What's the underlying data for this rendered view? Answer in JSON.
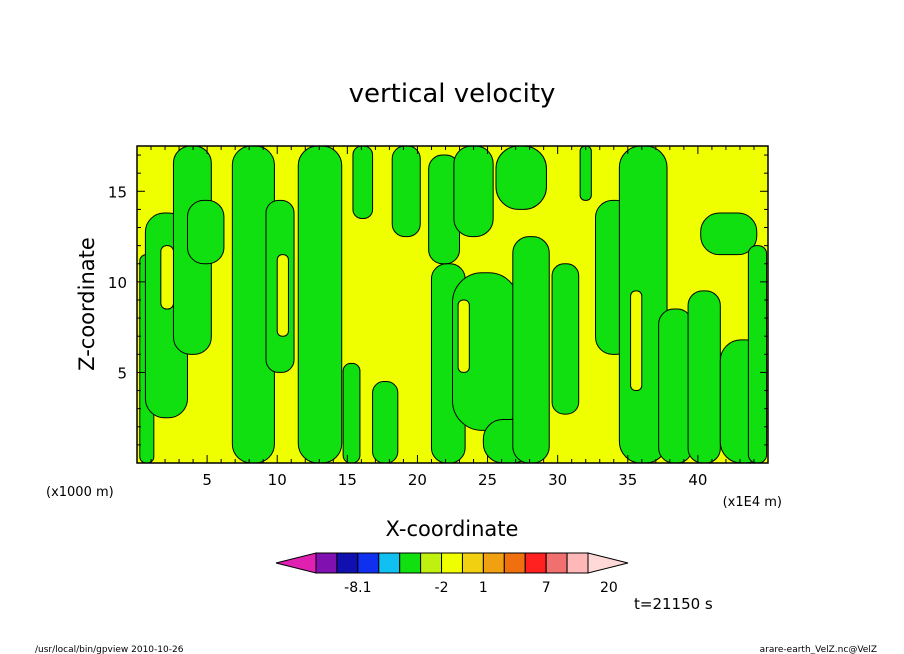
{
  "chart_data": {
    "type": "heatmap",
    "title": "vertical velocity",
    "xlabel": "X-coordinate",
    "ylabel": "Z-coordinate",
    "x_unit_left": "(x1000 m)",
    "x_unit_right": "(x1E4 m)",
    "xlim": [
      0,
      45
    ],
    "ylim": [
      0,
      17.5
    ],
    "x_ticks": [
      "5",
      "10",
      "15",
      "20",
      "25",
      "30",
      "35",
      "40"
    ],
    "y_ticks": [
      "5",
      "10",
      "15"
    ],
    "colors": {
      "yellow": "#f0ff00",
      "green": "#10e010",
      "frame": "#000000"
    },
    "green_bands": [
      {
        "x0": 0.2,
        "x1": 1.2,
        "z0": 0,
        "z1": 11.5
      },
      {
        "x0": 0.6,
        "x1": 3.6,
        "z0": 2.5,
        "z1": 13.8
      },
      {
        "x0": 2.6,
        "x1": 5.3,
        "z0": 6.0,
        "z1": 17.5
      },
      {
        "x0": 3.6,
        "x1": 6.2,
        "z0": 11.0,
        "z1": 14.5
      },
      {
        "x0": 6.8,
        "x1": 9.8,
        "z0": 0,
        "z1": 17.5
      },
      {
        "x0": 9.2,
        "x1": 11.2,
        "z0": 5.0,
        "z1": 14.5
      },
      {
        "x0": 11.5,
        "x1": 14.6,
        "z0": 0,
        "z1": 17.5
      },
      {
        "x0": 14.7,
        "x1": 15.9,
        "z0": 0,
        "z1": 5.5
      },
      {
        "x0": 15.4,
        "x1": 16.8,
        "z0": 13.5,
        "z1": 17.5
      },
      {
        "x0": 16.8,
        "x1": 18.6,
        "z0": 0,
        "z1": 4.5
      },
      {
        "x0": 18.2,
        "x1": 20.2,
        "z0": 12.5,
        "z1": 17.5
      },
      {
        "x0": 21.0,
        "x1": 23.4,
        "z0": 0,
        "z1": 11.0
      },
      {
        "x0": 20.8,
        "x1": 23.0,
        "z0": 11.0,
        "z1": 17.0
      },
      {
        "x0": 22.6,
        "x1": 25.4,
        "z0": 12.5,
        "z1": 17.5
      },
      {
        "x0": 22.5,
        "x1": 27.2,
        "z0": 1.8,
        "z1": 10.5
      },
      {
        "x0": 24.7,
        "x1": 28.2,
        "z0": 0,
        "z1": 2.4
      },
      {
        "x0": 25.6,
        "x1": 29.2,
        "z0": 14.0,
        "z1": 17.5
      },
      {
        "x0": 26.8,
        "x1": 29.4,
        "z0": 0,
        "z1": 12.5
      },
      {
        "x0": 29.6,
        "x1": 31.5,
        "z0": 2.7,
        "z1": 11.0
      },
      {
        "x0": 31.6,
        "x1": 32.4,
        "z0": 14.5,
        "z1": 17.5
      },
      {
        "x0": 32.7,
        "x1": 35.4,
        "z0": 6.0,
        "z1": 14.5
      },
      {
        "x0": 34.4,
        "x1": 37.8,
        "z0": 0,
        "z1": 17.5
      },
      {
        "x0": 37.2,
        "x1": 39.6,
        "z0": 0,
        "z1": 8.5
      },
      {
        "x0": 39.3,
        "x1": 41.6,
        "z0": 0,
        "z1": 9.5
      },
      {
        "x0": 40.2,
        "x1": 44.2,
        "z0": 11.5,
        "z1": 13.8
      },
      {
        "x0": 41.6,
        "x1": 44.9,
        "z0": 0,
        "z1": 6.8
      },
      {
        "x0": 43.6,
        "x1": 44.9,
        "z0": 0,
        "z1": 12.0
      }
    ],
    "yellow_patches": [
      {
        "x0": 1.7,
        "x1": 2.6,
        "z0": 8.5,
        "z1": 12.0
      },
      {
        "x0": 10.0,
        "x1": 10.8,
        "z0": 7.0,
        "z1": 11.5
      },
      {
        "x0": 22.9,
        "x1": 23.7,
        "z0": 5.0,
        "z1": 9.0
      },
      {
        "x0": 35.2,
        "x1": 36.0,
        "z0": 4.0,
        "z1": 9.5
      }
    ],
    "colorbar": {
      "colors": [
        "#e020b0",
        "#8010b0",
        "#1010b0",
        "#1030f0",
        "#10c0f0",
        "#10e010",
        "#c0f010",
        "#f0ff00",
        "#f0d010",
        "#f0a010",
        "#f07010",
        "#ff2020",
        "#f07070",
        "#ffb8b8",
        "#ffd8d8"
      ],
      "labels": [
        {
          "text": "-8.1",
          "boundary": 2
        },
        {
          "text": "-2",
          "boundary": 6
        },
        {
          "text": "1",
          "boundary": 8
        },
        {
          "text": "7",
          "boundary": 11
        },
        {
          "text": "20",
          "boundary": 14
        }
      ]
    }
  },
  "time_label": "t=21150 s",
  "footer_left": "/usr/local/bin/gpview  2010-10-26",
  "footer_right": "arare-earth_VelZ.nc@VelZ"
}
